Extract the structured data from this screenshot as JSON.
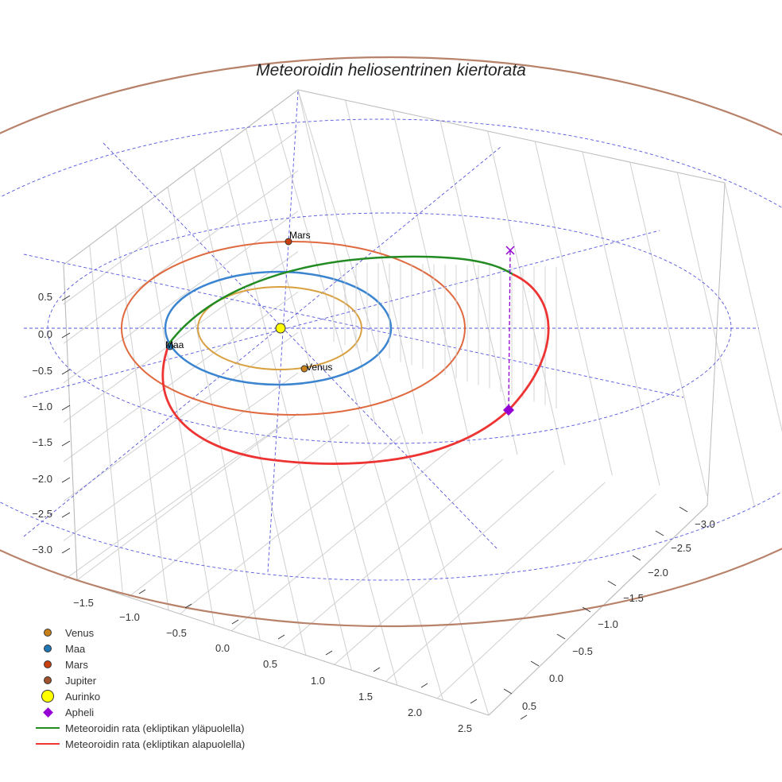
{
  "chart_data": {
    "type": "scatter",
    "title": "Meteoroidin heliosentrinen kiertorata",
    "x_ticks": [
      "−1.5",
      "−1.0",
      "−0.5",
      "0.0",
      "0.5",
      "1.0",
      "1.5",
      "2.0",
      "2.5"
    ],
    "y_ticks": [
      "−3.0",
      "−2.5",
      "−2.0",
      "−1.5",
      "−1.0",
      "−0.5",
      "0.0",
      "0.5"
    ],
    "z_ticks": [
      "0.5",
      "0.0",
      "−0.5",
      "−1.0",
      "−1.5",
      "−2.0",
      "−2.5",
      "−3.0"
    ],
    "point_labels": {
      "mars": "Mars",
      "maa": "Maa",
      "venus": "Venus"
    },
    "legend": [
      {
        "label": "Venus",
        "kind": "dot",
        "color": "#c8801a"
      },
      {
        "label": "Maa",
        "kind": "dot",
        "color": "#1f77b4"
      },
      {
        "label": "Mars",
        "kind": "dot",
        "color": "#c8400f"
      },
      {
        "label": "Jupiter",
        "kind": "dot",
        "color": "#a0522d"
      },
      {
        "label": "Aurinko",
        "kind": "sun",
        "color": "#ffff00"
      },
      {
        "label": "Apheli",
        "kind": "diamond",
        "color": "#9400d3"
      },
      {
        "label": "Meteoroidin rata (ekliptikan yläpuolella)",
        "kind": "line",
        "color": "#228b22"
      },
      {
        "label": "Meteoroidin rata (ekliptikan alapuolella)",
        "kind": "line",
        "color": "#ee3333"
      }
    ],
    "orbit_colors": {
      "venus": "#d9a040",
      "maa": "#3a84d0",
      "mars": "#e06a40",
      "jupiter": "#b8826a",
      "grid": "#5555dd"
    }
  }
}
